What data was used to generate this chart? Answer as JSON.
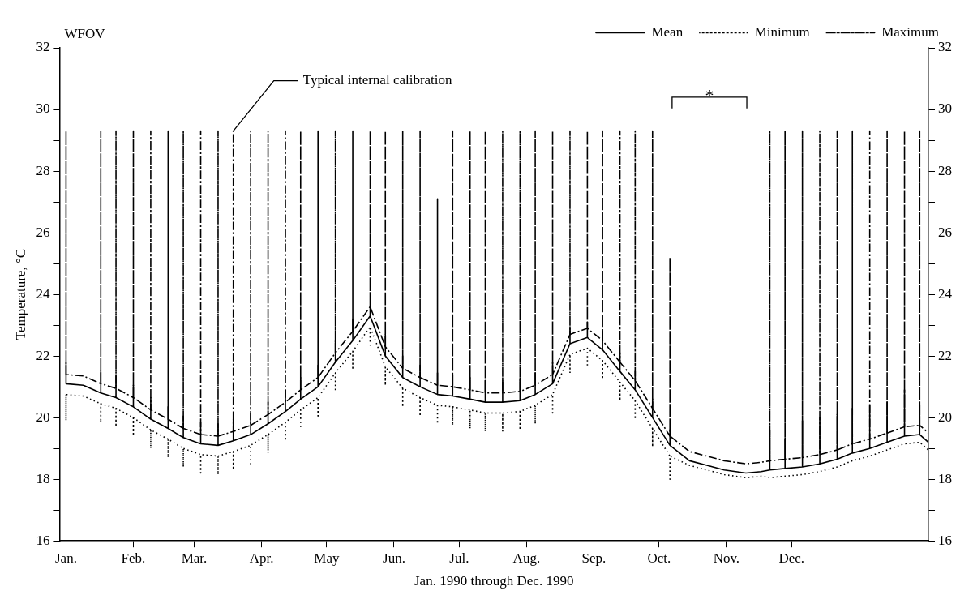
{
  "chart_data": {
    "type": "line",
    "title": "WFOV",
    "xlabel": "Jan. 1990 through Dec. 1990",
    "ylabel": "Temperature, °C",
    "xlim": [
      "1989-12-29",
      "1991-02-02"
    ],
    "xticks": [
      {
        "value": "1990-01-01",
        "label": "Jan."
      },
      {
        "value": "1990-02-01",
        "label": "Feb."
      },
      {
        "value": "1990-03-01",
        "label": "Mar."
      },
      {
        "value": "1990-04-01",
        "label": "Apr."
      },
      {
        "value": "1990-05-01",
        "label": "May"
      },
      {
        "value": "1990-06-01",
        "label": "Jun."
      },
      {
        "value": "1990-07-01",
        "label": "Jul."
      },
      {
        "value": "1990-08-01",
        "label": "Aug."
      },
      {
        "value": "1990-09-01",
        "label": "Sep."
      },
      {
        "value": "1990-10-01",
        "label": "Oct."
      },
      {
        "value": "1990-11-01",
        "label": "Nov."
      },
      {
        "value": "1990-12-01",
        "label": "Dec."
      }
    ],
    "ylim": [
      16,
      32
    ],
    "yticks": [
      16,
      {
        "value": 17,
        "label": null
      },
      18,
      {
        "value": 19,
        "label": null
      },
      20,
      {
        "value": 21,
        "label": null
      },
      22,
      {
        "value": 23,
        "label": null
      },
      24,
      {
        "value": 25,
        "label": null
      },
      26,
      {
        "value": 27,
        "label": null
      },
      28,
      {
        "value": 29,
        "label": null
      },
      30,
      {
        "value": 31,
        "label": null
      },
      32
    ],
    "y2lim": [
      16,
      32
    ],
    "y2ticks": [
      16,
      {
        "value": 17,
        "label": null
      },
      18,
      {
        "value": 19,
        "label": null
      },
      20,
      {
        "value": 21,
        "label": null
      },
      22,
      {
        "value": 23,
        "label": null
      },
      24,
      {
        "value": 25,
        "label": null
      },
      26,
      {
        "value": 27,
        "label": null
      },
      28,
      {
        "value": 29,
        "label": null
      },
      30,
      {
        "value": 31,
        "label": null
      },
      32
    ],
    "grid": false,
    "legend": "top right",
    "marker": "none",
    "x": [
      "1990-01-01",
      "1990-01-01",
      "1990-01-01",
      "1990-01-09",
      "1990-01-17",
      "1990-01-17",
      "1990-01-17",
      "1990-01-24",
      "1990-01-24",
      "1990-01-24",
      "1990-02-01",
      "1990-02-01",
      "1990-02-01",
      "1990-02-09",
      "1990-02-09",
      "1990-02-09",
      "1990-02-17",
      "1990-02-17",
      "1990-02-17",
      "1990-02-24",
      "1990-02-24",
      "1990-02-24",
      "1990-03-04",
      "1990-03-04",
      "1990-03-04",
      "1990-03-12",
      "1990-03-12",
      "1990-03-12",
      "1990-03-19",
      "1990-03-19",
      "1990-03-19",
      "1990-03-27",
      "1990-03-27",
      "1990-03-27",
      "1990-04-04",
      "1990-04-04",
      "1990-04-04",
      "1990-04-12",
      "1990-04-12",
      "1990-04-12",
      "1990-04-19",
      "1990-04-19",
      "1990-04-19",
      "1990-04-27",
      "1990-04-27",
      "1990-04-27",
      "1990-05-05",
      "1990-05-05",
      "1990-05-05",
      "1990-05-13",
      "1990-05-13",
      "1990-05-13",
      "1990-05-21",
      "1990-05-21",
      "1990-05-21",
      "1990-05-28",
      "1990-05-28",
      "1990-05-28",
      "1990-06-05",
      "1990-06-05",
      "1990-06-05",
      "1990-06-13",
      "1990-06-13",
      "1990-06-13",
      "1990-06-21",
      "1990-06-21",
      "1990-06-21",
      "1990-06-28",
      "1990-06-28",
      "1990-06-28",
      "1990-07-06",
      "1990-07-06",
      "1990-07-06",
      "1990-07-13",
      "1990-07-13",
      "1990-07-13",
      "1990-07-21",
      "1990-07-21",
      "1990-07-21",
      "1990-07-29",
      "1990-07-29",
      "1990-07-29",
      "1990-08-05",
      "1990-08-05",
      "1990-08-05",
      "1990-08-13",
      "1990-08-13",
      "1990-08-13",
      "1990-08-21",
      "1990-08-21",
      "1990-08-21",
      "1990-08-29",
      "1990-08-29",
      "1990-08-29",
      "1990-09-05",
      "1990-09-05",
      "1990-09-05",
      "1990-09-13",
      "1990-09-13",
      "1990-09-13",
      "1990-09-20",
      "1990-09-20",
      "1990-09-20",
      "1990-09-28",
      "1990-09-28",
      "1990-09-28",
      "1990-10-06",
      "1990-10-06",
      "1990-10-06",
      "1990-10-15",
      "1990-10-23",
      "1990-10-31",
      "1990-11-10",
      "1990-11-17",
      "1990-11-21",
      "1990-11-21",
      "1990-11-21",
      "1990-11-28",
      "1990-11-28",
      "1990-11-28",
      "1990-12-06",
      "1990-12-06",
      "1990-12-06",
      "1990-12-14",
      "1990-12-14",
      "1990-12-14",
      "1990-12-22",
      "1990-12-22",
      "1990-12-22",
      "1990-12-29",
      "1990-12-29",
      "1990-12-29",
      "1991-01-06",
      "1991-01-06",
      "1991-01-06",
      "1991-01-14",
      "1991-01-14",
      "1991-01-14",
      "1991-01-22",
      "1991-01-22",
      "1991-01-22",
      "1991-01-29",
      "1991-01-29",
      "1991-01-29",
      "1991-02-02"
    ],
    "series": [
      {
        "name": "Mean",
        "color": "#000000",
        "line_style": "solid",
        "values": [
          21.1,
          21.8,
          21.1,
          21.05,
          20.8,
          21.5,
          20.8,
          20.65,
          21.35,
          20.65,
          20.35,
          21.05,
          20.35,
          19.95,
          20.65,
          19.95,
          19.65,
          20.35,
          19.65,
          19.35,
          20.05,
          19.35,
          19.15,
          19.85,
          19.15,
          19.1,
          19.8,
          19.1,
          19.25,
          19.95,
          19.25,
          19.45,
          20.15,
          19.45,
          19.8,
          20.5,
          19.8,
          20.2,
          20.9,
          20.2,
          20.6,
          21.3,
          20.6,
          21,
          21.7,
          21,
          21.8,
          22.5,
          21.8,
          22.5,
          23.2,
          22.5,
          23.3,
          23.6,
          23.3,
          22,
          22.7,
          22,
          21.3,
          22,
          21.3,
          21,
          21.7,
          21,
          20.75,
          21.45,
          20.75,
          20.7,
          21.4,
          20.7,
          20.6,
          21.3,
          20.6,
          20.5,
          21.2,
          20.5,
          20.5,
          21.2,
          20.5,
          20.55,
          21.25,
          20.55,
          20.75,
          21.45,
          20.75,
          21.1,
          21.8,
          21.1,
          22.4,
          22.9,
          22.4,
          22.6,
          23.1,
          22.6,
          22.2,
          22.8,
          22.2,
          21.5,
          22.1,
          21.5,
          20.9,
          21.5,
          20.9,
          20,
          20.6,
          20,
          19.1,
          19.6,
          19.1,
          18.6,
          18.45,
          18.3,
          18.2,
          18.25,
          18.3,
          19.6,
          18.3,
          18.35,
          19.3,
          18.35,
          18.4,
          19.9,
          18.4,
          18.5,
          20,
          18.5,
          18.65,
          20.1,
          18.65,
          18.85,
          20.3,
          18.85,
          19,
          20.4,
          19,
          19.2,
          20.5,
          19.2,
          19.4,
          20.9,
          19.4,
          19.45,
          20.4,
          19.45,
          19.2
        ]
      },
      {
        "name": "Minimum",
        "color": "#000000",
        "line_style": "dotted",
        "values": [
          20.75,
          19.9,
          20.75,
          20.7,
          20.45,
          19.85,
          20.45,
          20.3,
          19.7,
          20.3,
          20,
          19.4,
          20,
          19.6,
          19,
          19.6,
          19.3,
          18.7,
          19.3,
          19,
          18.4,
          19,
          18.8,
          18.2,
          18.8,
          18.75,
          18.15,
          18.75,
          18.9,
          18.3,
          18.9,
          19.1,
          18.5,
          19.1,
          19.45,
          18.85,
          19.45,
          19.85,
          19.25,
          19.85,
          20.25,
          19.65,
          20.25,
          20.65,
          20.05,
          20.65,
          21.45,
          20.85,
          21.45,
          22.15,
          21.55,
          22.15,
          22.95,
          22.35,
          22.95,
          21.65,
          21.05,
          21.65,
          20.95,
          20.35,
          20.95,
          20.65,
          20.05,
          20.65,
          20.4,
          19.8,
          20.4,
          20.35,
          19.75,
          20.35,
          20.25,
          19.65,
          20.25,
          20.15,
          19.55,
          20.15,
          20.15,
          19.55,
          20.15,
          20.2,
          19.6,
          20.2,
          20.4,
          19.8,
          20.4,
          20.75,
          20.15,
          20.75,
          22.05,
          21.45,
          22.05,
          22.25,
          21.65,
          22.25,
          21.85,
          21.25,
          21.85,
          21.15,
          20.55,
          21.15,
          20.55,
          19.95,
          20.55,
          19.65,
          19.05,
          19.65,
          18.75,
          18,
          18.75,
          18.45,
          18.3,
          18.15,
          18.05,
          18.1,
          18.05,
          18.05,
          18.05,
          18.1,
          18.1,
          18.1,
          18.15,
          18.15,
          18.15,
          18.25,
          18.25,
          18.25,
          18.4,
          18.4,
          18.4,
          18.6,
          18.6,
          18.6,
          18.75,
          18.75,
          18.75,
          18.95,
          18.95,
          18.95,
          19.15,
          19.15,
          19.15,
          19.2,
          19.2,
          19.2,
          18.95
        ]
      },
      {
        "name": "Maximum",
        "color": "#000000",
        "line_style": "dashed",
        "values": [
          21.4,
          29.3,
          21.4,
          21.35,
          21.1,
          29.3,
          21.1,
          20.95,
          29.3,
          20.95,
          20.65,
          29.3,
          20.65,
          20.25,
          29.3,
          20.25,
          19.95,
          29.3,
          19.95,
          19.65,
          29.3,
          19.65,
          19.45,
          29.3,
          19.45,
          19.4,
          29.3,
          19.4,
          19.55,
          29.3,
          19.55,
          19.75,
          29.3,
          19.75,
          20.1,
          29.3,
          20.1,
          20.5,
          29.3,
          20.5,
          20.9,
          29.3,
          20.9,
          21.3,
          29.3,
          21.3,
          22.1,
          29.3,
          22.1,
          22.8,
          29.3,
          22.8,
          23.6,
          29.3,
          23.6,
          22.3,
          29.3,
          22.3,
          21.6,
          29.3,
          21.6,
          21.3,
          29.3,
          21.3,
          21.05,
          27.1,
          21.05,
          21,
          29.3,
          21,
          20.9,
          29.3,
          20.9,
          20.8,
          29.3,
          20.8,
          20.8,
          29.3,
          20.8,
          20.85,
          29.3,
          20.85,
          21.05,
          29.3,
          21.05,
          21.4,
          29.3,
          21.4,
          22.7,
          29.3,
          22.7,
          22.9,
          29.3,
          22.9,
          22.5,
          29.3,
          22.5,
          21.8,
          29.3,
          21.8,
          21.2,
          29.3,
          21.2,
          20.3,
          29.3,
          20.3,
          19.4,
          25.2,
          19.4,
          18.9,
          18.75,
          18.6,
          18.5,
          18.55,
          18.6,
          29.3,
          18.6,
          18.65,
          29.3,
          18.65,
          18.7,
          29.3,
          18.7,
          18.8,
          29.3,
          18.8,
          18.95,
          29.3,
          18.95,
          19.15,
          29.3,
          19.15,
          19.3,
          29.3,
          19.3,
          19.5,
          29.3,
          19.5,
          19.7,
          29.3,
          19.7,
          19.75,
          29.3,
          19.75,
          19.5
        ]
      }
    ],
    "annotations": [
      {
        "text": "Typical internal calibration",
        "x": "1990-03-19",
        "y": 29.3
      },
      "*"
    ]
  }
}
